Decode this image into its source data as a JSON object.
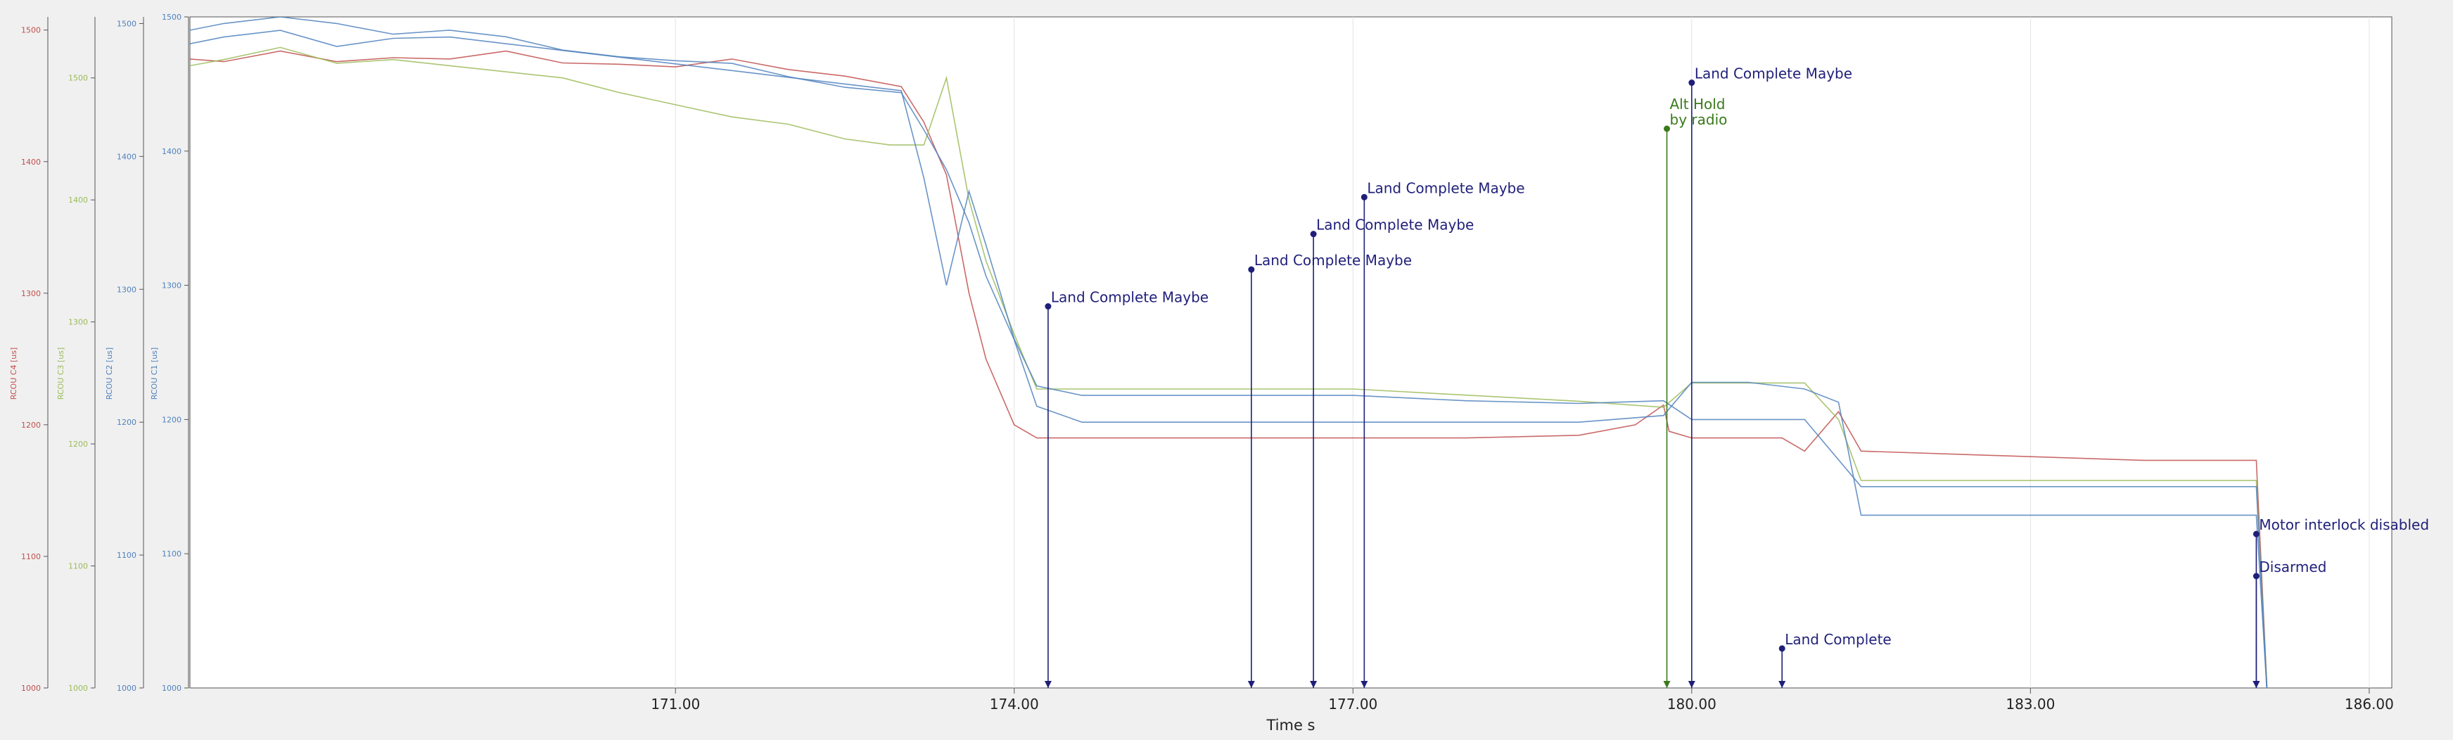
{
  "chart_data": {
    "type": "line",
    "xlabel": "Time s",
    "xlim": [
      166.7,
      186.2
    ],
    "x_ticks": [
      "171.00",
      "174.00",
      "177.00",
      "180.00",
      "183.00",
      "186.00"
    ],
    "x_tick_values": [
      171,
      174,
      177,
      180,
      183,
      186
    ],
    "grid": true,
    "axes": [
      {
        "label": "RCOU C4 [us]",
        "color": "#c0504d",
        "range": [
          1000,
          1510
        ],
        "ticks": [
          "1000",
          "1100",
          "1200",
          "1300",
          "1400",
          "1500"
        ],
        "tick_values": [
          1000,
          1100,
          1200,
          1300,
          1400,
          1500
        ]
      },
      {
        "label": "RCOU C3 [us]",
        "color": "#9bbb59",
        "range": [
          1000,
          1550
        ],
        "ticks": [
          "1000",
          "1100",
          "1200",
          "1300",
          "1400",
          "1500"
        ],
        "tick_values": [
          1000,
          1100,
          1200,
          1300,
          1400,
          1500
        ]
      },
      {
        "label": "RCOU C2 [us]",
        "color": "#4f81bd",
        "range": [
          1000,
          1505
        ],
        "ticks": [
          "1000",
          "1100",
          "1200",
          "1300",
          "1400",
          "1500"
        ],
        "tick_values": [
          1000,
          1100,
          1200,
          1300,
          1400,
          1500
        ]
      },
      {
        "label": "RCOU C1 [us]",
        "color": "#4f81bd",
        "range": [
          1000,
          1500
        ],
        "ticks": [
          "1000",
          "1100",
          "1200",
          "1300",
          "1400",
          "1500"
        ],
        "tick_values": [
          1000,
          1100,
          1200,
          1300,
          1400,
          1500
        ]
      }
    ],
    "series": [
      {
        "name": "RCOU C4",
        "color": "#c0504d",
        "axis": 0,
        "x": [
          166.7,
          167.0,
          167.5,
          168.0,
          168.5,
          169.0,
          169.5,
          170.0,
          170.5,
          171.0,
          171.5,
          172.0,
          172.5,
          173.0,
          173.2,
          173.4,
          173.6,
          173.75,
          174.0,
          174.2,
          174.6,
          175.0,
          176.0,
          177.0,
          178.0,
          179.0,
          179.5,
          179.75,
          179.8,
          180.0,
          180.5,
          180.8,
          181.0,
          181.3,
          181.5,
          184.0,
          185.0,
          185.1
        ],
        "y": [
          1478,
          1476,
          1484,
          1476,
          1479,
          1478,
          1484,
          1475,
          1474,
          1472,
          1478,
          1470,
          1465,
          1457,
          1430,
          1390,
          1300,
          1250,
          1200,
          1190,
          1190,
          1190,
          1190,
          1190,
          1190,
          1192,
          1200,
          1215,
          1195,
          1190,
          1190,
          1190,
          1180,
          1210,
          1180,
          1173,
          1173,
          990
        ]
      },
      {
        "name": "RCOU C3",
        "color": "#9bbb59",
        "axis": 1,
        "x": [
          166.7,
          167.0,
          167.5,
          168.0,
          168.5,
          169.0,
          169.5,
          170.0,
          170.5,
          171.0,
          171.5,
          172.0,
          172.5,
          172.9,
          173.2,
          173.4,
          173.6,
          173.75,
          174.0,
          174.2,
          174.6,
          175.0,
          176.0,
          177.0,
          178.0,
          179.0,
          179.75,
          180.0,
          180.5,
          181.0,
          181.3,
          181.5,
          184.0,
          185.0,
          185.1
        ],
        "y": [
          1510,
          1515,
          1525,
          1512,
          1515,
          1510,
          1505,
          1500,
          1488,
          1478,
          1468,
          1462,
          1450,
          1445,
          1445,
          1500,
          1400,
          1350,
          1290,
          1245,
          1245,
          1245,
          1245,
          1245,
          1240,
          1235,
          1230,
          1250,
          1250,
          1250,
          1220,
          1170,
          1170,
          1170,
          990
        ]
      },
      {
        "name": "RCOU C2",
        "color": "#4f81bd",
        "axis": 2,
        "x": [
          166.7,
          167.0,
          167.5,
          168.0,
          168.5,
          169.0,
          169.5,
          170.0,
          170.5,
          171.0,
          171.5,
          172.0,
          172.5,
          173.0,
          173.2,
          173.4,
          173.6,
          173.75,
          174.0,
          174.2,
          174.6,
          175.0,
          176.0,
          177.0,
          178.0,
          179.0,
          179.75,
          180.0,
          180.5,
          181.0,
          181.3,
          181.5,
          184.0,
          185.0,
          185.1
        ],
        "y": [
          1495,
          1500,
          1505,
          1500,
          1492,
          1495,
          1490,
          1480,
          1475,
          1472,
          1470,
          1460,
          1452,
          1448,
          1420,
          1390,
          1350,
          1310,
          1262,
          1212,
          1200,
          1200,
          1200,
          1200,
          1200,
          1200,
          1205,
          1230,
          1230,
          1225,
          1215,
          1130,
          1130,
          1130,
          990
        ]
      },
      {
        "name": "RCOU C1",
        "color": "#4f81bd",
        "axis": 3,
        "x": [
          166.7,
          167.0,
          167.5,
          168.0,
          168.5,
          169.0,
          169.5,
          170.0,
          170.5,
          171.0,
          171.5,
          172.0,
          172.5,
          173.0,
          173.2,
          173.4,
          173.6,
          173.75,
          174.0,
          174.2,
          174.6,
          175.0,
          176.0,
          177.0,
          178.0,
          179.0,
          179.75,
          180.0,
          180.5,
          181.0,
          181.3,
          181.5,
          184.0,
          185.0,
          185.1
        ],
        "y": [
          1480,
          1485,
          1490,
          1478,
          1484,
          1485,
          1480,
          1475,
          1470,
          1465,
          1460,
          1455,
          1450,
          1445,
          1380,
          1300,
          1370,
          1330,
          1260,
          1225,
          1218,
          1218,
          1218,
          1218,
          1214,
          1212,
          1214,
          1200,
          1200,
          1200,
          1170,
          1150,
          1150,
          1150,
          990
        ]
      }
    ],
    "annotations": [
      {
        "x": 174.3,
        "y": 1290,
        "label": "Land Complete Maybe",
        "color": "#1f1f7a"
      },
      {
        "x": 176.1,
        "y": 1318,
        "label": "Land Complete Maybe",
        "color": "#1f1f7a"
      },
      {
        "x": 176.65,
        "y": 1345,
        "label": "Land Complete Maybe",
        "color": "#1f1f7a"
      },
      {
        "x": 177.1,
        "y": 1373,
        "label": "Land Complete Maybe",
        "color": "#1f1f7a"
      },
      {
        "x": 179.78,
        "y": 1425,
        "label": "Alt Hold\nby radio",
        "color": "#3a7a1a"
      },
      {
        "x": 180.0,
        "y": 1460,
        "label": "Land Complete Maybe",
        "color": "#1f1f7a"
      },
      {
        "x": 180.8,
        "y": 1030,
        "label": "Land Complete",
        "color": "#1f1f7a"
      },
      {
        "x": 185.0,
        "y": 1085,
        "label": "Disarmed",
        "color": "#1f1f7a"
      },
      {
        "x": 185.0,
        "y": 1117,
        "label": "Motor interlock disabled",
        "color": "#1f1f7a"
      }
    ]
  }
}
